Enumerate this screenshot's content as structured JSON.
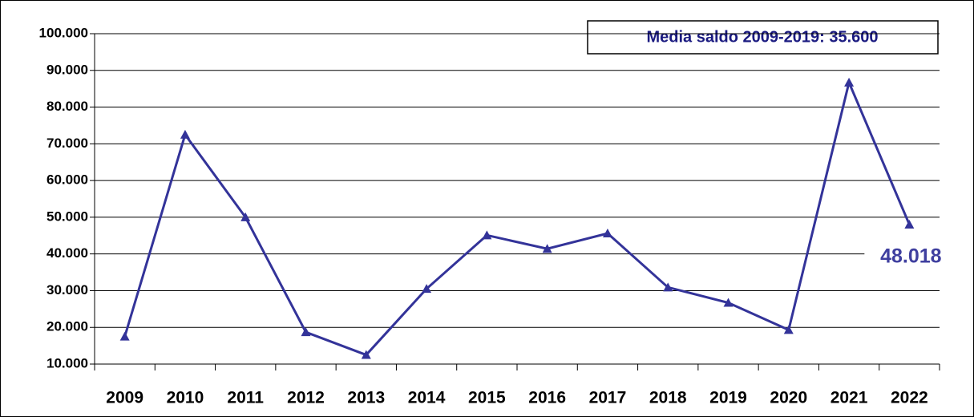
{
  "chart_data": {
    "type": "line",
    "annotation": "Media saldo 2009-2019: 35.600",
    "categories": [
      "2009",
      "2010",
      "2011",
      "2012",
      "2013",
      "2014",
      "2015",
      "2016",
      "2017",
      "2018",
      "2019",
      "2020",
      "2021",
      "2022"
    ],
    "values": [
      17500,
      72500,
      50000,
      18700,
      12500,
      30500,
      45100,
      41400,
      45600,
      30900,
      26700,
      19300,
      86700,
      48018
    ],
    "value_labels": [
      null,
      null,
      null,
      null,
      null,
      null,
      null,
      null,
      null,
      null,
      null,
      null,
      null,
      "48.018"
    ],
    "color": "#333399",
    "ylim": [
      10000,
      100000
    ],
    "yticks": [
      {
        "value": 10000,
        "label": "10.000"
      },
      {
        "value": 20000,
        "label": "20.000"
      },
      {
        "value": 30000,
        "label": "30.000"
      },
      {
        "value": 40000,
        "label": "40.000"
      },
      {
        "value": 50000,
        "label": "50.000"
      },
      {
        "value": 60000,
        "label": "60.000"
      },
      {
        "value": 70000,
        "label": "70.000"
      },
      {
        "value": 80000,
        "label": "80.000"
      },
      {
        "value": 90000,
        "label": "90.000"
      },
      {
        "value": 100000,
        "label": "100.000"
      }
    ],
    "grid": true
  }
}
